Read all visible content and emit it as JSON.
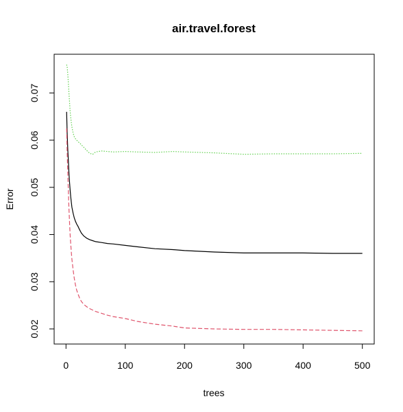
{
  "chart_data": {
    "type": "line",
    "title": "air.travel.forest",
    "xlabel": "trees",
    "ylabel": "Error",
    "xlim": [
      -20,
      520
    ],
    "ylim": [
      0.0168,
      0.0782
    ],
    "xticks": [
      0,
      100,
      200,
      300,
      400,
      500
    ],
    "yticks": [
      0.02,
      0.03,
      0.04,
      0.05,
      0.06,
      0.07
    ],
    "xtick_labels": [
      "0",
      "100",
      "200",
      "300",
      "400",
      "500"
    ],
    "ytick_labels": [
      "0.02",
      "0.03",
      "0.04",
      "0.05",
      "0.06",
      "0.07"
    ],
    "grid": false,
    "legend": "none",
    "series": [
      {
        "color": "#000000",
        "dash": "solid",
        "x": [
          1,
          2,
          3,
          4,
          5,
          6,
          7,
          8,
          9,
          10,
          12,
          14,
          16,
          18,
          20,
          23,
          26,
          30,
          35,
          40,
          45,
          50,
          60,
          70,
          80,
          100,
          120,
          150,
          180,
          200,
          250,
          300,
          350,
          400,
          450,
          500
        ],
        "y": [
          0.066,
          0.0615,
          0.058,
          0.0555,
          0.053,
          0.051,
          0.0495,
          0.048,
          0.0468,
          0.0458,
          0.0445,
          0.0435,
          0.0428,
          0.0422,
          0.0418,
          0.041,
          0.0403,
          0.0397,
          0.0392,
          0.0389,
          0.0387,
          0.0385,
          0.0383,
          0.0381,
          0.038,
          0.0377,
          0.0374,
          0.037,
          0.0368,
          0.0366,
          0.0363,
          0.0361,
          0.0361,
          0.0361,
          0.036,
          0.036
        ]
      },
      {
        "color": "#DF536B",
        "dash": "dashed",
        "x": [
          1,
          2,
          3,
          4,
          5,
          6,
          7,
          8,
          9,
          10,
          12,
          14,
          16,
          18,
          20,
          23,
          26,
          30,
          35,
          40,
          45,
          50,
          60,
          70,
          80,
          100,
          120,
          150,
          180,
          200,
          250,
          300,
          350,
          400,
          450,
          500
        ],
        "y": [
          0.0625,
          0.0575,
          0.053,
          0.049,
          0.0455,
          0.0425,
          0.04,
          0.038,
          0.0362,
          0.0348,
          0.0325,
          0.0307,
          0.0293,
          0.0282,
          0.0275,
          0.0265,
          0.0258,
          0.0252,
          0.0247,
          0.0243,
          0.024,
          0.0237,
          0.0233,
          0.0229,
          0.0226,
          0.0222,
          0.0216,
          0.021,
          0.0206,
          0.0202,
          0.02,
          0.0199,
          0.0199,
          0.0198,
          0.0197,
          0.0196
        ]
      },
      {
        "color": "#61D04F",
        "dash": "dotted",
        "x": [
          1,
          2,
          3,
          4,
          5,
          6,
          7,
          8,
          9,
          10,
          12,
          14,
          16,
          18,
          20,
          23,
          26,
          30,
          35,
          40,
          45,
          50,
          60,
          70,
          80,
          100,
          120,
          150,
          180,
          200,
          250,
          300,
          350,
          400,
          450,
          500
        ],
        "y": [
          0.076,
          0.0755,
          0.074,
          0.072,
          0.07,
          0.068,
          0.0662,
          0.0648,
          0.0637,
          0.0628,
          0.0615,
          0.0607,
          0.0603,
          0.06,
          0.0597,
          0.0594,
          0.059,
          0.0585,
          0.0578,
          0.0572,
          0.057,
          0.0575,
          0.0577,
          0.0576,
          0.0575,
          0.0576,
          0.0575,
          0.0574,
          0.0576,
          0.0575,
          0.0573,
          0.057,
          0.0571,
          0.0571,
          0.0571,
          0.0572
        ]
      }
    ]
  }
}
